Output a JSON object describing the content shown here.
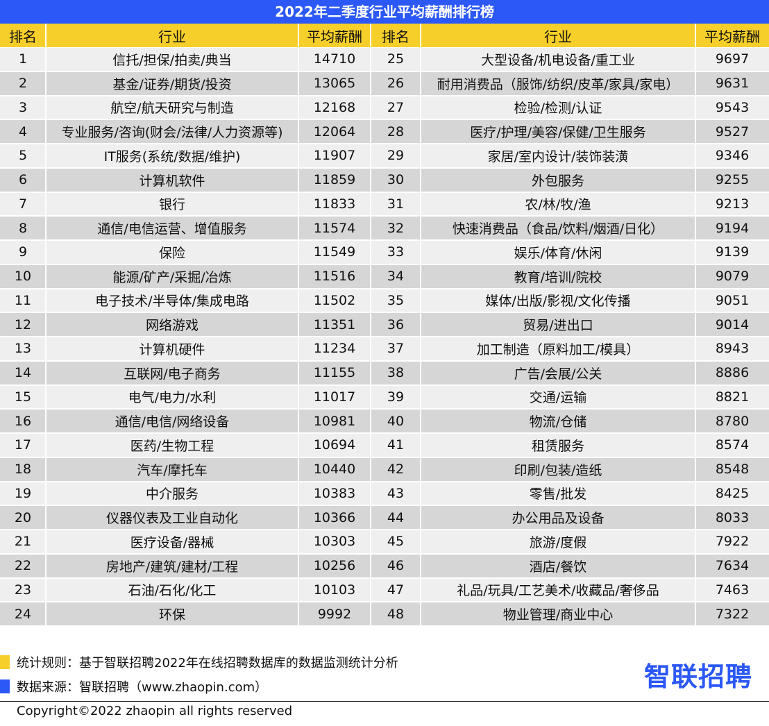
{
  "title": "2022年二季度行业平均薪酬排行榜",
  "colors": {
    "title_bg": "#2b58f6",
    "header_bg": "#f6cf2a",
    "row_light": "#efefef",
    "row_dark": "#d6d6d6",
    "logo": "#2b58f6"
  },
  "headers": {
    "rank": "排名",
    "industry": "行业",
    "salary": "平均薪酬"
  },
  "chart_data": {
    "type": "table",
    "title": "2022年二季度行业平均薪酬排行榜",
    "columns": [
      "排名",
      "行业",
      "平均薪酬"
    ],
    "rows": [
      {
        "rank": "1",
        "industry": "信托/担保/拍卖/典当",
        "salary": "14710"
      },
      {
        "rank": "2",
        "industry": "基金/证券/期货/投资",
        "salary": "13065"
      },
      {
        "rank": "3",
        "industry": "航空/航天研究与制造",
        "salary": "12168"
      },
      {
        "rank": "4",
        "industry": "专业服务/咨询(财会/法律/人力资源等)",
        "salary": "12064"
      },
      {
        "rank": "5",
        "industry": "IT服务(系统/数据/维护)",
        "salary": "11907"
      },
      {
        "rank": "6",
        "industry": "计算机软件",
        "salary": "11859"
      },
      {
        "rank": "7",
        "industry": "银行",
        "salary": "11833"
      },
      {
        "rank": "8",
        "industry": "通信/电信运营、增值服务",
        "salary": "11574"
      },
      {
        "rank": "9",
        "industry": "保险",
        "salary": "11549"
      },
      {
        "rank": "10",
        "industry": "能源/矿产/采掘/冶炼",
        "salary": "11516"
      },
      {
        "rank": "11",
        "industry": "电子技术/半导体/集成电路",
        "salary": "11502"
      },
      {
        "rank": "12",
        "industry": "网络游戏",
        "salary": "11351"
      },
      {
        "rank": "13",
        "industry": "计算机硬件",
        "salary": "11234"
      },
      {
        "rank": "14",
        "industry": "互联网/电子商务",
        "salary": "11155"
      },
      {
        "rank": "15",
        "industry": "电气/电力/水利",
        "salary": "11017"
      },
      {
        "rank": "16",
        "industry": "通信/电信/网络设备",
        "salary": "10981"
      },
      {
        "rank": "17",
        "industry": "医药/生物工程",
        "salary": "10694"
      },
      {
        "rank": "18",
        "industry": "汽车/摩托车",
        "salary": "10440"
      },
      {
        "rank": "19",
        "industry": "中介服务",
        "salary": "10383"
      },
      {
        "rank": "20",
        "industry": "仪器仪表及工业自动化",
        "salary": "10366"
      },
      {
        "rank": "21",
        "industry": "医疗设备/器械",
        "salary": "10303"
      },
      {
        "rank": "22",
        "industry": "房地产/建筑/建材/工程",
        "salary": "10256"
      },
      {
        "rank": "23",
        "industry": "石油/石化/化工",
        "salary": "10103"
      },
      {
        "rank": "24",
        "industry": "环保",
        "salary": "9992"
      },
      {
        "rank": "25",
        "industry": "大型设备/机电设备/重工业",
        "salary": "9697"
      },
      {
        "rank": "26",
        "industry": "耐用消费品（服饰/纺织/皮革/家具/家电）",
        "salary": "9631"
      },
      {
        "rank": "27",
        "industry": "检验/检测/认证",
        "salary": "9543"
      },
      {
        "rank": "28",
        "industry": "医疗/护理/美容/保健/卫生服务",
        "salary": "9527"
      },
      {
        "rank": "29",
        "industry": "家居/室内设计/装饰装潢",
        "salary": "9346"
      },
      {
        "rank": "30",
        "industry": "外包服务",
        "salary": "9255"
      },
      {
        "rank": "31",
        "industry": "农/林/牧/渔",
        "salary": "9213"
      },
      {
        "rank": "32",
        "industry": "快速消费品（食品/饮料/烟酒/日化）",
        "salary": "9194"
      },
      {
        "rank": "33",
        "industry": "娱乐/体育/休闲",
        "salary": "9139"
      },
      {
        "rank": "34",
        "industry": "教育/培训/院校",
        "salary": "9079"
      },
      {
        "rank": "35",
        "industry": "媒体/出版/影视/文化传播",
        "salary": "9051"
      },
      {
        "rank": "36",
        "industry": "贸易/进出口",
        "salary": "9014"
      },
      {
        "rank": "37",
        "industry": "加工制造（原料加工/模具）",
        "salary": "8943"
      },
      {
        "rank": "38",
        "industry": "广告/会展/公关",
        "salary": "8886"
      },
      {
        "rank": "39",
        "industry": "交通/运输",
        "salary": "8821"
      },
      {
        "rank": "40",
        "industry": "物流/仓储",
        "salary": "8780"
      },
      {
        "rank": "41",
        "industry": "租赁服务",
        "salary": "8574"
      },
      {
        "rank": "42",
        "industry": "印刷/包装/造纸",
        "salary": "8548"
      },
      {
        "rank": "43",
        "industry": "零售/批发",
        "salary": "8425"
      },
      {
        "rank": "44",
        "industry": "办公用品及设备",
        "salary": "8033"
      },
      {
        "rank": "45",
        "industry": "旅游/度假",
        "salary": "7922"
      },
      {
        "rank": "46",
        "industry": "酒店/餐饮",
        "salary": "7634"
      },
      {
        "rank": "47",
        "industry": "礼品/玩具/工艺美术/收藏品/奢侈品",
        "salary": "7463"
      },
      {
        "rank": "48",
        "industry": "物业管理/商业中心",
        "salary": "7322"
      }
    ]
  },
  "footer": {
    "note_rule": "统计规则：基于智联招聘2022年在线招聘数据库的数据监测统计分析",
    "note_rule_color": "#f6cf2a",
    "note_source": "数据来源：智联招聘（www.zhaopin.com）",
    "note_source_color": "#2b58f6",
    "logo_text": "智联招聘",
    "copyright": "Copyright©2022 zhaopin all rights reserved"
  }
}
